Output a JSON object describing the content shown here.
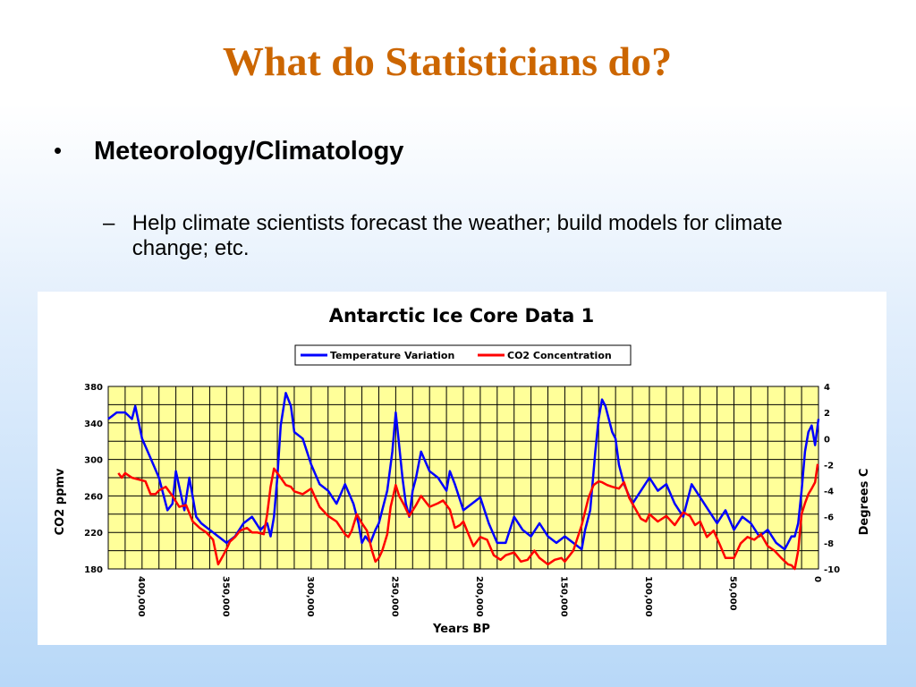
{
  "slide": {
    "title": "What do Statisticians do?",
    "bullet": "Meteorology/Climatology",
    "bullet_marker": "•",
    "sub_marker": "–",
    "sub": "Help climate scientists forecast the weather; build models for climate change; etc."
  },
  "colors": {
    "title": "#cc6600",
    "plot_bg": "#ffff99",
    "temperature": "#0000ff",
    "co2": "#ff0000"
  },
  "chart_data": {
    "type": "line",
    "title": "Antarctic Ice Core Data 1",
    "xlabel": "Years BP",
    "ylabel_left": "CO2 ppmv",
    "ylabel_right": "Degrees C",
    "xlim": [
      420000,
      0
    ],
    "x_reversed": true,
    "ylim_left": [
      180,
      380
    ],
    "ylim_right": [
      -10,
      4
    ],
    "x_ticks": [
      "400,000",
      "350,000",
      "300,000",
      "250,000",
      "200,000",
      "150,000",
      "100,000",
      "50,000",
      "0"
    ],
    "x_tick_values": [
      400000,
      350000,
      300000,
      250000,
      200000,
      150000,
      100000,
      50000,
      0
    ],
    "y_ticks_left": [
      "380",
      "340",
      "300",
      "260",
      "220",
      "180"
    ],
    "y_ticks_left_values": [
      380,
      340,
      300,
      260,
      220,
      180
    ],
    "y_ticks_right": [
      "4",
      "2",
      "0",
      "-2",
      "-4",
      "-6",
      "-8",
      "-10"
    ],
    "y_ticks_right_values": [
      4,
      2,
      0,
      -2,
      -4,
      -6,
      -8,
      -10
    ],
    "grid": true,
    "legend_position": "top-center",
    "series": [
      {
        "name": "Temperature Variation",
        "axis": "right",
        "x": [
          420000,
          415000,
          410000,
          406000,
          404000,
          400000,
          395000,
          390000,
          385000,
          382000,
          380000,
          375000,
          372000,
          368000,
          365000,
          360000,
          355000,
          350000,
          345000,
          340000,
          335000,
          330000,
          326000,
          324000,
          322000,
          320000,
          318000,
          315000,
          312000,
          310000,
          305000,
          300000,
          295000,
          290000,
          285000,
          280000,
          275000,
          272000,
          270000,
          268000,
          265000,
          262000,
          260000,
          255000,
          252000,
          250000,
          248000,
          246000,
          244000,
          242000,
          240000,
          238000,
          235000,
          230000,
          225000,
          220000,
          218000,
          215000,
          210000,
          205000,
          200000,
          195000,
          190000,
          185000,
          180000,
          175000,
          170000,
          165000,
          160000,
          155000,
          150000,
          145000,
          140000,
          138000,
          135000,
          132000,
          130000,
          128000,
          126000,
          124000,
          122000,
          120000,
          118000,
          115000,
          110000,
          105000,
          100000,
          95000,
          90000,
          85000,
          80000,
          75000,
          70000,
          65000,
          60000,
          55000,
          50000,
          45000,
          40000,
          35000,
          30000,
          25000,
          20000,
          18000,
          16000,
          14000,
          12000,
          10000,
          8000,
          6000,
          4000,
          2000,
          0
        ],
        "y": [
          1.5,
          2.0,
          2.0,
          1.5,
          2.5,
          0.0,
          -1.5,
          -3.0,
          -5.5,
          -5.0,
          -2.5,
          -5.5,
          -3.0,
          -6.0,
          -6.5,
          -7.0,
          -7.5,
          -8.0,
          -7.5,
          -6.5,
          -6.0,
          -7.0,
          -6.5,
          -7.5,
          -6.0,
          -3.0,
          1.0,
          3.5,
          2.5,
          0.5,
          0.0,
          -2.0,
          -3.5,
          -4.0,
          -5.0,
          -3.5,
          -5.0,
          -6.5,
          -8.0,
          -7.5,
          -8.0,
          -7.0,
          -6.5,
          -4.0,
          -1.0,
          2.0,
          -0.5,
          -3.0,
          -5.0,
          -6.0,
          -4.0,
          -3.0,
          -1.0,
          -2.5,
          -3.0,
          -4.0,
          -2.5,
          -3.5,
          -5.5,
          -5.0,
          -4.5,
          -6.5,
          -8.0,
          -8.0,
          -6.0,
          -7.0,
          -7.5,
          -6.5,
          -7.5,
          -8.0,
          -7.5,
          -8.0,
          -8.5,
          -7.0,
          -5.5,
          -1.0,
          1.5,
          3.0,
          2.5,
          1.5,
          0.5,
          0.0,
          -2.0,
          -3.5,
          -5.0,
          -4.0,
          -3.0,
          -4.0,
          -3.5,
          -5.0,
          -6.0,
          -3.5,
          -4.5,
          -5.5,
          -6.5,
          -5.5,
          -7.0,
          -6.0,
          -6.5,
          -7.5,
          -7.0,
          -8.0,
          -8.5,
          -8.0,
          -7.5,
          -7.5,
          -6.5,
          -4.0,
          -1.0,
          0.5,
          1.0,
          -0.5,
          1.5
        ]
      },
      {
        "name": "CO2 Concentration",
        "axis": "left",
        "x": [
          414000,
          412000,
          410000,
          406000,
          402000,
          398000,
          395000,
          392000,
          390000,
          386000,
          382000,
          378000,
          374000,
          370000,
          366000,
          362000,
          358000,
          355000,
          352000,
          350000,
          348000,
          345000,
          342000,
          338000,
          335000,
          332000,
          328000,
          326000,
          324000,
          322000,
          320000,
          318000,
          315000,
          312000,
          310000,
          305000,
          300000,
          298000,
          295000,
          290000,
          285000,
          280000,
          278000,
          276000,
          273000,
          270000,
          267000,
          264000,
          262000,
          260000,
          258000,
          255000,
          253000,
          250000,
          248000,
          245000,
          242000,
          238000,
          235000,
          230000,
          225000,
          222000,
          218000,
          215000,
          212000,
          210000,
          207000,
          204000,
          200000,
          196000,
          192000,
          188000,
          185000,
          180000,
          176000,
          172000,
          168000,
          165000,
          160000,
          156000,
          152000,
          150000,
          145000,
          140000,
          136000,
          133000,
          130000,
          128000,
          125000,
          122000,
          118000,
          115000,
          112000,
          108000,
          105000,
          102000,
          100000,
          95000,
          90000,
          85000,
          80000,
          76000,
          73000,
          70000,
          66000,
          62000,
          58000,
          55000,
          50000,
          46000,
          42000,
          38000,
          34000,
          30000,
          26000,
          22000,
          18000,
          16000,
          14000,
          12000,
          10000,
          8000,
          6000,
          4000,
          2000,
          500
        ],
        "y": [
          285,
          280,
          285,
          280,
          278,
          276,
          262,
          262,
          266,
          270,
          260,
          248,
          250,
          232,
          225,
          220,
          212,
          185,
          195,
          202,
          210,
          215,
          222,
          225,
          220,
          220,
          218,
          240,
          270,
          290,
          285,
          280,
          272,
          270,
          265,
          262,
          268,
          260,
          248,
          238,
          232,
          218,
          215,
          222,
          240,
          230,
          222,
          200,
          188,
          192,
          200,
          218,
          248,
          272,
          260,
          250,
          238,
          250,
          260,
          248,
          252,
          255,
          245,
          225,
          228,
          232,
          218,
          205,
          215,
          212,
          195,
          190,
          195,
          198,
          188,
          190,
          200,
          192,
          185,
          190,
          192,
          188,
          200,
          228,
          258,
          272,
          276,
          275,
          272,
          270,
          268,
          275,
          258,
          245,
          235,
          232,
          240,
          232,
          238,
          228,
          242,
          238,
          228,
          232,
          215,
          222,
          205,
          192,
          192,
          208,
          215,
          212,
          218,
          205,
          200,
          192,
          185,
          184,
          180,
          200,
          240,
          252,
          262,
          268,
          275,
          295
        ]
      }
    ]
  }
}
